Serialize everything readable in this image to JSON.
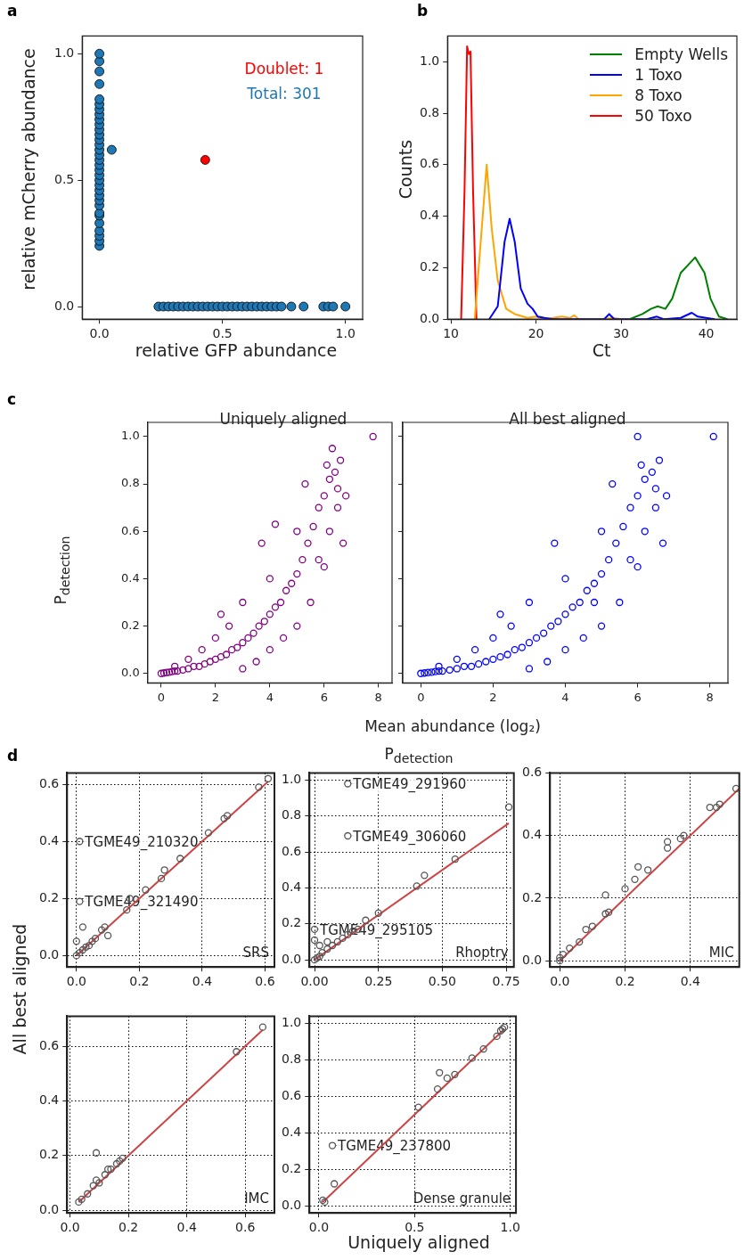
{
  "chart_data": [
    {
      "type": "scatter",
      "xlabel": "relative GFP abundance",
      "ylabel": "relative mCherry abundance",
      "annotations": [
        "a",
        "Doublet: 1",
        "Total: 301"
      ],
      "marker": "circle",
      "series": [
        {
          "color": "#1f77b4",
          "x": [
            0,
            0,
            0,
            0,
            0,
            0,
            0,
            0,
            0,
            0,
            0,
            0,
            0,
            0,
            0,
            0,
            0,
            0,
            0,
            0,
            0,
            0,
            0,
            0,
            0,
            0,
            0,
            0,
            0,
            0,
            0,
            0,
            0,
            0.05,
            0.24,
            0.26,
            0.28,
            0.3,
            0.32,
            0.34,
            0.36,
            0.38,
            0.4,
            0.42,
            0.44,
            0.46,
            0.48,
            0.5,
            0.52,
            0.54,
            0.56,
            0.58,
            0.6,
            0.62,
            0.64,
            0.66,
            0.68,
            0.7,
            0.72,
            0.74,
            0.78,
            0.83,
            0.91,
            0.93,
            0.95,
            1.0
          ],
          "values": [
            0.24,
            0.26,
            0.28,
            0.3,
            0.33,
            0.36,
            0.37,
            0.4,
            0.42,
            0.44,
            0.46,
            0.48,
            0.5,
            0.52,
            0.54,
            0.56,
            0.58,
            0.6,
            0.62,
            0.64,
            0.66,
            0.68,
            0.7,
            0.72,
            0.74,
            0.76,
            0.78,
            0.8,
            0.82,
            0.88,
            0.93,
            0.97,
            1.0,
            0.62,
            0,
            0,
            0,
            0,
            0,
            0,
            0,
            0,
            0,
            0,
            0,
            0,
            0,
            0,
            0,
            0,
            0,
            0,
            0,
            0,
            0,
            0,
            0,
            0,
            0,
            0,
            0,
            0,
            0,
            0,
            0,
            0
          ]
        },
        {
          "color": "#ff0000",
          "x": [
            0.43
          ],
          "values": [
            0.58
          ]
        }
      ],
      "xlim": [
        -0.07,
        1.07
      ],
      "ylim": [
        -0.05,
        1.07
      ],
      "xticks": [
        {
          "value": 0,
          "label": "0.0"
        },
        {
          "value": 0.5,
          "label": "0.5"
        },
        {
          "value": 1,
          "label": "1.0"
        }
      ],
      "yticks": [
        {
          "value": 0,
          "label": "0.0"
        },
        {
          "value": 0.5,
          "label": "0.5"
        },
        {
          "value": 1,
          "label": "1.0"
        }
      ]
    },
    {
      "type": "line",
      "xlabel": "Ct",
      "ylabel": "Counts",
      "annotations": [
        "b"
      ],
      "legend": "top right",
      "series": [
        {
          "name": "Empty Wells",
          "color": "#008000",
          "x": [
            31,
            32.5,
            33.5,
            34.3,
            35.2,
            36,
            37,
            38.7,
            39.8,
            40.5,
            41.5,
            42.5
          ],
          "values": [
            0,
            0.02,
            0.04,
            0.05,
            0.04,
            0.08,
            0.18,
            0.24,
            0.18,
            0.08,
            0.01,
            0
          ]
        },
        {
          "name": "1 Toxo",
          "color": "#0000ff",
          "x": [
            14.5,
            15.5,
            16.3,
            16.9,
            17.5,
            18.2,
            19,
            19.6,
            20.2,
            21,
            22,
            28,
            28.6,
            29.2,
            33,
            34.2,
            35,
            37,
            38.3,
            39,
            40,
            41
          ],
          "values": [
            0,
            0.05,
            0.3,
            0.39,
            0.3,
            0.12,
            0.06,
            0.04,
            0.01,
            0.005,
            0,
            0,
            0.02,
            0,
            0,
            0.01,
            0,
            0.005,
            0.025,
            0.01,
            0.005,
            0
          ]
        },
        {
          "name": "8 Toxo",
          "color": "#ffa500",
          "x": [
            12.8,
            13.5,
            14.2,
            14.8,
            15.5,
            16.5,
            17.5,
            19,
            20,
            21,
            22,
            23,
            24,
            24.5,
            25,
            28,
            29,
            30
          ],
          "values": [
            0,
            0.3,
            0.6,
            0.35,
            0.15,
            0.04,
            0.02,
            0.005,
            0.01,
            0,
            0.005,
            0.01,
            0.005,
            0.015,
            0,
            0,
            0.005,
            0
          ]
        },
        {
          "name": "50 Toxo",
          "color": "#ff0000",
          "x": [
            11.2,
            11.6,
            11.9,
            12.1,
            12.3,
            12.6,
            13
          ],
          "values": [
            0,
            0.5,
            1.06,
            1.03,
            1.04,
            0.5,
            0
          ]
        }
      ],
      "xlim": [
        9.6,
        43.6
      ],
      "ylim": [
        0,
        1.1
      ],
      "xticks": [
        10,
        20,
        30,
        40
      ],
      "yticks": [
        {
          "value": 0,
          "label": "0.0"
        },
        {
          "value": 0.2,
          "label": "0.2"
        },
        {
          "value": 0.4,
          "label": "0.4"
        },
        {
          "value": 0.6,
          "label": "0.6"
        },
        {
          "value": 0.8,
          "label": "0.8"
        },
        {
          "value": 1,
          "label": "1.0"
        }
      ]
    },
    {
      "type": "scatter",
      "title": "Uniquely aligned",
      "xlabel": "Mean abundance (log₂)",
      "ylabel": "P$_{detection}$",
      "annotations": [
        "c"
      ],
      "marker": "circle",
      "series": [
        {
          "color": "#800080",
          "x": [
            0,
            0.1,
            0.2,
            0.3,
            0.4,
            0.5,
            0.6,
            0.8,
            1,
            1.2,
            1.4,
            1.6,
            1.8,
            2,
            2.2,
            2.4,
            2.6,
            2.8,
            3,
            3.2,
            3.4,
            3.6,
            3.8,
            4,
            4.2,
            4.4,
            4.6,
            4.8,
            5,
            5.2,
            5.4,
            5.6,
            5.8,
            6,
            6.2,
            6.4,
            6.6,
            2,
            2.5,
            3,
            3,
            3.5,
            4,
            4,
            4.5,
            5,
            5,
            5.5,
            5.8,
            6,
            6.2,
            6.5,
            6.7,
            6.8,
            6.3,
            7.8,
            4.2,
            5.3,
            3.7,
            2.2,
            1.5,
            6.1,
            6.5,
            1,
            0.5
          ],
          "values": [
            0,
            0.002,
            0.004,
            0.005,
            0.008,
            0.01,
            0.01,
            0.015,
            0.02,
            0.03,
            0.03,
            0.04,
            0.05,
            0.06,
            0.07,
            0.08,
            0.1,
            0.11,
            0.13,
            0.15,
            0.17,
            0.2,
            0.22,
            0.25,
            0.28,
            0.3,
            0.35,
            0.38,
            0.42,
            0.48,
            0.55,
            0.62,
            0.7,
            0.75,
            0.82,
            0.85,
            0.9,
            0.15,
            0.2,
            0.3,
            0.02,
            0.05,
            0.1,
            0.4,
            0.15,
            0.2,
            0.6,
            0.3,
            0.48,
            0.45,
            0.6,
            0.7,
            0.55,
            0.75,
            0.95,
            1.0,
            0.63,
            0.8,
            0.55,
            0.25,
            0.1,
            0.88,
            0.78,
            0.06,
            0.03
          ]
        }
      ],
      "xlim": [
        -0.5,
        8.5
      ],
      "ylim": [
        -0.04,
        1.06
      ],
      "xticks": [
        0,
        2,
        4,
        6,
        8
      ],
      "yticks": [
        {
          "value": 0,
          "label": "0.0"
        },
        {
          "value": 0.2,
          "label": "0.2"
        },
        {
          "value": 0.4,
          "label": "0.4"
        },
        {
          "value": 0.6,
          "label": "0.6"
        },
        {
          "value": 0.8,
          "label": "0.8"
        },
        {
          "value": 1,
          "label": "1.0"
        }
      ]
    },
    {
      "type": "scatter",
      "title": "All best aligned",
      "marker": "circle",
      "tick_labels": "x",
      "series": [
        {
          "color": "#0000ff",
          "x": [
            0,
            0.1,
            0.2,
            0.3,
            0.4,
            0.5,
            0.6,
            0.8,
            1,
            1.2,
            1.4,
            1.6,
            1.8,
            2,
            2.2,
            2.4,
            2.6,
            2.8,
            3,
            3.2,
            3.4,
            3.6,
            3.8,
            4,
            4.2,
            4.4,
            4.6,
            4.8,
            5,
            5.2,
            5.4,
            5.6,
            5.8,
            6,
            6.2,
            6.4,
            6.6,
            2,
            2.5,
            3,
            3,
            3.5,
            4,
            4,
            4.5,
            5,
            5,
            5.5,
            5.8,
            6,
            6.2,
            6.5,
            6.7,
            6.8,
            6,
            8.1,
            4.8,
            5.3,
            3.7,
            2.2,
            1.5,
            6.1,
            6.5,
            1,
            0.5
          ],
          "values": [
            0,
            0.002,
            0.004,
            0.005,
            0.008,
            0.01,
            0.01,
            0.015,
            0.02,
            0.03,
            0.03,
            0.04,
            0.05,
            0.06,
            0.07,
            0.08,
            0.1,
            0.11,
            0.13,
            0.15,
            0.17,
            0.2,
            0.22,
            0.25,
            0.28,
            0.3,
            0.35,
            0.38,
            0.42,
            0.48,
            0.55,
            0.62,
            0.7,
            0.75,
            0.82,
            0.85,
            0.9,
            0.15,
            0.2,
            0.3,
            0.02,
            0.05,
            0.1,
            0.4,
            0.15,
            0.2,
            0.6,
            0.3,
            0.48,
            0.45,
            0.6,
            0.7,
            0.55,
            0.75,
            1.0,
            1.0,
            0.3,
            0.8,
            0.55,
            0.25,
            0.1,
            0.88,
            0.78,
            0.06,
            0.03
          ]
        }
      ],
      "xlim": [
        -0.5,
        8.5
      ],
      "ylim": [
        -0.04,
        1.06
      ],
      "xticks": [
        0,
        2,
        4,
        6,
        8
      ],
      "yticks": [
        {
          "value": 0,
          "label": null
        },
        {
          "value": 0.2,
          "label": null
        },
        {
          "value": 0.4,
          "label": null
        },
        {
          "value": 0.6,
          "label": null
        },
        {
          "value": 0.8,
          "label": null
        },
        {
          "value": 1,
          "label": null
        }
      ]
    },
    {
      "type": "scatter",
      "ylabel": "All best aligned",
      "annotations": [
        "d",
        {
          "text": "TGME49_210320",
          "x": 0.01,
          "y": 0.4
        },
        {
          "text": "TGME49_321490",
          "x": 0.01,
          "y": 0.19
        },
        "SRS"
      ],
      "marker": "circle",
      "grid": true,
      "series": [
        {
          "color": "#555555",
          "x": [
            0,
            0.01,
            0.02,
            0.03,
            0.04,
            0.05,
            0.06,
            0,
            0.02,
            0.08,
            0.09,
            0.1,
            0.16,
            0.17,
            0.22,
            0.27,
            0.28,
            0.33,
            0.42,
            0.47,
            0.48,
            0.58,
            0.61,
            0.01,
            0.01
          ],
          "values": [
            0,
            0.01,
            0.02,
            0.03,
            0.035,
            0.05,
            0.06,
            0.05,
            0.1,
            0.09,
            0.1,
            0.07,
            0.16,
            0.2,
            0.23,
            0.27,
            0.3,
            0.34,
            0.43,
            0.48,
            0.49,
            0.59,
            0.62,
            0.4,
            0.19
          ]
        },
        {
          "type": "line",
          "marker": "none",
          "color": "#cc4444",
          "x": [
            0,
            0.61
          ],
          "values": [
            0,
            0.61
          ]
        }
      ],
      "xlim": [
        -0.03,
        0.63
      ],
      "ylim": [
        -0.04,
        0.64
      ],
      "xticks": [
        {
          "value": 0,
          "label": "0.0"
        },
        {
          "value": 0.2,
          "label": "0.2"
        },
        {
          "value": 0.4,
          "label": "0.4"
        },
        {
          "value": 0.6,
          "label": "0.6"
        }
      ],
      "yticks": [
        {
          "value": 0,
          "label": "0.0"
        },
        {
          "value": 0.2,
          "label": "0.2"
        },
        {
          "value": 0.4,
          "label": "0.4"
        },
        {
          "value": 0.6,
          "label": "0.6"
        }
      ]
    },
    {
      "type": "scatter",
      "title": "P$_{detection}$",
      "annotations": [
        {
          "text": "TGME49_291960",
          "x": 0.13,
          "y": 0.98
        },
        {
          "text": "TGME49_306060",
          "x": 0.13,
          "y": 0.69
        },
        {
          "text": "TGME49_295105",
          "x": 0,
          "y": 0.17
        },
        "Rhoptry"
      ],
      "marker": "circle",
      "grid": true,
      "series": [
        {
          "color": "#555555",
          "x": [
            0,
            0.01,
            0.02,
            0.03,
            0.05,
            0.07,
            0.09,
            0.11,
            0.13,
            0.15,
            0.17,
            0.2,
            0.25,
            0.4,
            0.43,
            0.55,
            0.76,
            0.13,
            0.13,
            0,
            0,
            0.02,
            0.05
          ],
          "values": [
            0,
            0.01,
            0.02,
            0.04,
            0.06,
            0.08,
            0.1,
            0.12,
            0.14,
            0.16,
            0.17,
            0.22,
            0.26,
            0.41,
            0.47,
            0.56,
            0.85,
            0.98,
            0.69,
            0.17,
            0.11,
            0.08,
            0.1
          ]
        },
        {
          "type": "line",
          "marker": "none",
          "color": "#cc4444",
          "x": [
            0,
            0.76
          ],
          "values": [
            0,
            0.76
          ]
        }
      ],
      "xlim": [
        -0.02,
        0.78
      ],
      "ylim": [
        -0.04,
        1.04
      ],
      "xticks": [
        {
          "value": 0,
          "label": "0.00"
        },
        {
          "value": 0.25,
          "label": "0.25"
        },
        {
          "value": 0.5,
          "label": "0.50"
        },
        {
          "value": 0.75,
          "label": "0.75"
        }
      ],
      "yticks": [
        {
          "value": 0,
          "label": "0.0"
        },
        {
          "value": 0.2,
          "label": "0.2"
        },
        {
          "value": 0.4,
          "label": "0.4"
        },
        {
          "value": 0.6,
          "label": "0.6"
        },
        {
          "value": 0.8,
          "label": "0.8"
        },
        {
          "value": 1,
          "label": "1.0"
        }
      ]
    },
    {
      "type": "scatter",
      "annotations": [
        "MIC"
      ],
      "marker": "circle",
      "grid": true,
      "series": [
        {
          "color": "#555555",
          "x": [
            0,
            0,
            0.01,
            0.03,
            0.06,
            0.08,
            0.1,
            0.14,
            0.14,
            0.15,
            0.2,
            0.23,
            0.24,
            0.27,
            0.33,
            0.33,
            0.37,
            0.38,
            0.46,
            0.48,
            0.49,
            0.54
          ],
          "values": [
            0,
            0.01,
            0.02,
            0.04,
            0.06,
            0.1,
            0.11,
            0.21,
            0.15,
            0.155,
            0.23,
            0.26,
            0.3,
            0.29,
            0.38,
            0.36,
            0.39,
            0.4,
            0.49,
            0.49,
            0.5,
            0.55
          ]
        },
        {
          "type": "line",
          "marker": "none",
          "color": "#cc4444",
          "x": [
            0,
            0.55
          ],
          "values": [
            0,
            0.55
          ]
        }
      ],
      "xlim": [
        -0.03,
        0.55
      ],
      "ylim": [
        -0.02,
        0.6
      ],
      "xticks": [
        {
          "value": 0,
          "label": "0.0"
        },
        {
          "value": 0.2,
          "label": "0.2"
        },
        {
          "value": 0.4,
          "label": "0.4"
        }
      ],
      "yticks": [
        {
          "value": 0,
          "label": "0.0"
        },
        {
          "value": 0.2,
          "label": "0.2"
        },
        {
          "value": 0.4,
          "label": "0.4"
        },
        {
          "value": 0.6,
          "label": "0.6"
        }
      ]
    },
    {
      "type": "scatter",
      "annotations": [
        "IMC"
      ],
      "marker": "circle",
      "grid": true,
      "series": [
        {
          "color": "#555555",
          "x": [
            0.03,
            0.04,
            0.06,
            0.08,
            0.09,
            0.1,
            0.09,
            0.12,
            0.13,
            0.14,
            0.16,
            0.17,
            0.18,
            0.57,
            0.66
          ],
          "values": [
            0.03,
            0.04,
            0.06,
            0.09,
            0.11,
            0.1,
            0.21,
            0.13,
            0.15,
            0.15,
            0.17,
            0.18,
            0.19,
            0.58,
            0.67
          ]
        },
        {
          "type": "line",
          "marker": "none",
          "color": "#cc4444",
          "x": [
            0.03,
            0.66
          ],
          "values": [
            0.03,
            0.66
          ]
        }
      ],
      "xlim": [
        -0.01,
        0.7
      ],
      "ylim": [
        -0.01,
        0.71
      ],
      "xticks": [
        {
          "value": 0,
          "label": "0.0"
        },
        {
          "value": 0.2,
          "label": "0.2"
        },
        {
          "value": 0.4,
          "label": "0.4"
        },
        {
          "value": 0.6,
          "label": "0.6"
        }
      ],
      "yticks": [
        {
          "value": 0,
          "label": "0.0"
        },
        {
          "value": 0.2,
          "label": "0.2"
        },
        {
          "value": 0.4,
          "label": "0.4"
        },
        {
          "value": 0.6,
          "label": "0.6"
        }
      ]
    },
    {
      "type": "scatter",
      "xlabel": "Uniquely aligned",
      "annotations": [
        {
          "text": "TGME49_237800",
          "x": 0.07,
          "y": 0.33
        },
        "Dense granule"
      ],
      "marker": "circle",
      "grid": true,
      "series": [
        {
          "color": "#555555",
          "x": [
            0.02,
            0.03,
            0.07,
            0.08,
            0.52,
            0.62,
            0.63,
            0.67,
            0.71,
            0.8,
            0.86,
            0.93,
            0.95,
            0.96,
            0.97
          ],
          "values": [
            0.03,
            0.02,
            0.33,
            0.12,
            0.54,
            0.64,
            0.73,
            0.7,
            0.72,
            0.81,
            0.86,
            0.93,
            0.96,
            0.97,
            0.98
          ]
        },
        {
          "type": "line",
          "marker": "none",
          "color": "#cc4444",
          "x": [
            0.02,
            0.97
          ],
          "values": [
            0.02,
            0.97
          ]
        }
      ],
      "xlim": [
        -0.05,
        1.03
      ],
      "ylim": [
        -0.04,
        1.04
      ],
      "xticks": [
        {
          "value": 0,
          "label": "0.0"
        },
        {
          "value": 0.5,
          "label": "0.5"
        },
        {
          "value": 1,
          "label": "1.0"
        }
      ],
      "yticks": [
        {
          "value": 0,
          "label": "0.0"
        },
        {
          "value": 0.2,
          "label": "0.2"
        },
        {
          "value": 0.4,
          "label": "0.4"
        },
        {
          "value": 0.6,
          "label": "0.6"
        },
        {
          "value": 0.8,
          "label": "0.8"
        },
        {
          "value": 1,
          "label": "1.0"
        }
      ]
    }
  ]
}
